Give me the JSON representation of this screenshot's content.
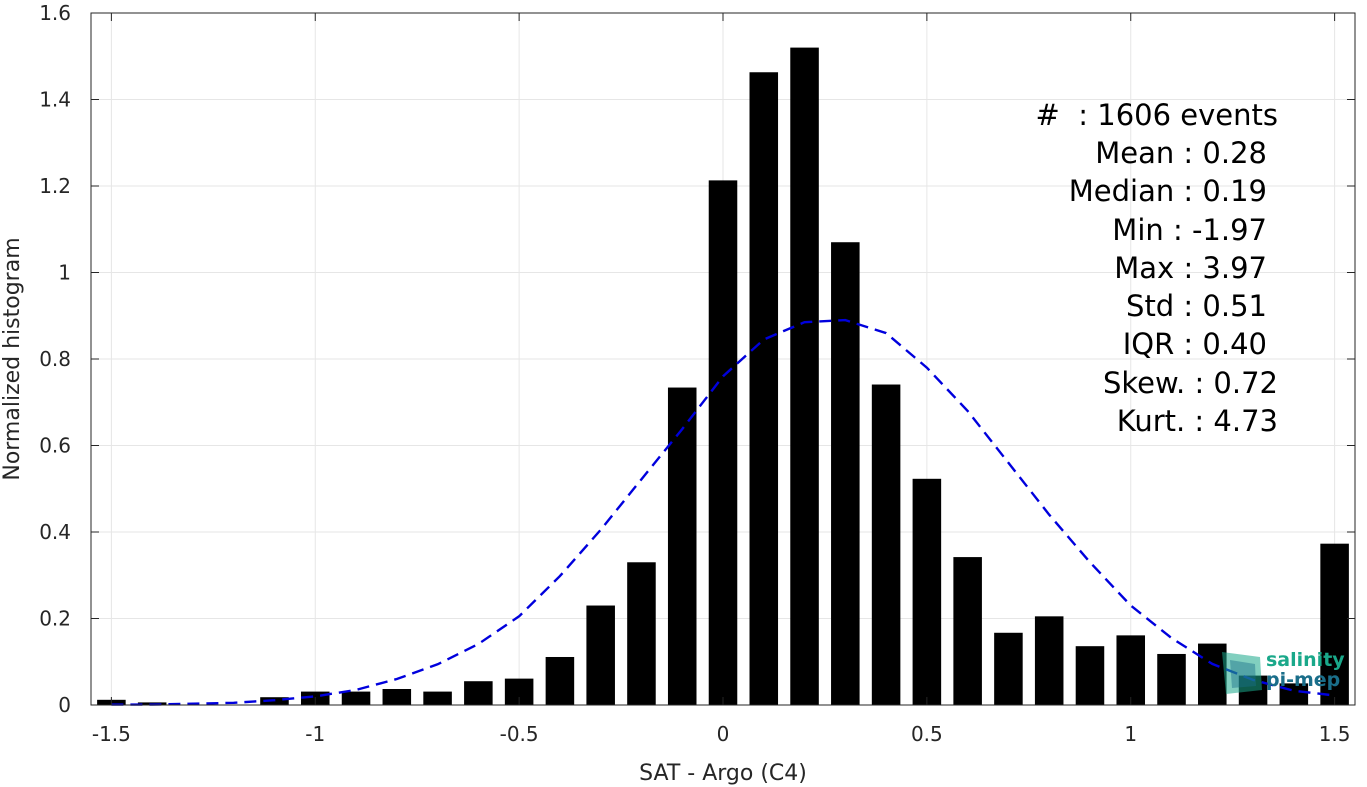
{
  "chart_data": {
    "type": "bar",
    "xlabel": "SAT - Argo (C4)",
    "ylabel": "Normalized histogram",
    "xlim": [
      -1.55,
      1.55
    ],
    "ylim": [
      0,
      1.6
    ],
    "xticks": [
      -1.5,
      -1,
      -0.5,
      0,
      0.5,
      1,
      1.5
    ],
    "xtick_labels": [
      "-1.5",
      "-1",
      "-0.5",
      "0",
      "0.5",
      "1",
      "1.5"
    ],
    "yticks": [
      0,
      0.2,
      0.4,
      0.6,
      0.8,
      1,
      1.2,
      1.4,
      1.6
    ],
    "ytick_labels": [
      "0",
      "0.2",
      "0.4",
      "0.6",
      "0.8",
      "1",
      "1.2",
      "1.4",
      "1.6"
    ],
    "grid": true,
    "bar_color": "#000000",
    "bar_width": 0.07,
    "x": [
      -1.5,
      -1.4,
      -1.3,
      -1.2,
      -1.1,
      -1.0,
      -0.9,
      -0.8,
      -0.7,
      -0.6,
      -0.5,
      -0.4,
      -0.3,
      -0.2,
      -0.1,
      0.0,
      0.1,
      0.2,
      0.3,
      0.4,
      0.5,
      0.6,
      0.7,
      0.8,
      0.9,
      1.0,
      1.1,
      1.2,
      1.3,
      1.4,
      1.5
    ],
    "values": [
      0.012,
      0.006,
      0.0,
      0.0,
      0.018,
      0.031,
      0.031,
      0.037,
      0.031,
      0.055,
      0.061,
      0.111,
      0.23,
      0.33,
      0.734,
      1.213,
      1.463,
      1.52,
      1.07,
      0.741,
      0.523,
      0.342,
      0.167,
      0.205,
      0.136,
      0.161,
      0.118,
      0.142,
      0.068,
      0.05,
      0.373
    ],
    "fit_curve": {
      "color": "#0000dd",
      "style": "dashed",
      "x": [
        -1.5,
        -1.4,
        -1.3,
        -1.2,
        -1.1,
        -1.0,
        -0.9,
        -0.8,
        -0.7,
        -0.6,
        -0.5,
        -0.4,
        -0.3,
        -0.2,
        -0.1,
        0.0,
        0.1,
        0.2,
        0.3,
        0.4,
        0.5,
        0.6,
        0.7,
        0.8,
        0.9,
        1.0,
        1.1,
        1.2,
        1.3,
        1.4,
        1.5
      ],
      "y": [
        0.001,
        0.001,
        0.003,
        0.005,
        0.011,
        0.02,
        0.035,
        0.06,
        0.094,
        0.141,
        0.205,
        0.298,
        0.405,
        0.522,
        0.638,
        0.76,
        0.845,
        0.885,
        0.89,
        0.86,
        0.78,
        0.68,
        0.56,
        0.44,
        0.33,
        0.23,
        0.155,
        0.095,
        0.058,
        0.033,
        0.022
      ]
    },
    "annotations": [
      "#  : 1606 events",
      "Mean : 0.28",
      "Median : 0.19",
      "Min : -1.97",
      "Max : 3.97",
      "Std : 0.51",
      "IQR : 0.40",
      "Skew. : 0.72",
      "Kurt. : 4.73"
    ]
  },
  "logo": {
    "line1": "salinity",
    "line2": "pi-mep",
    "color_primary": "#1aa88a",
    "color_secondary": "#1a6e8a"
  }
}
